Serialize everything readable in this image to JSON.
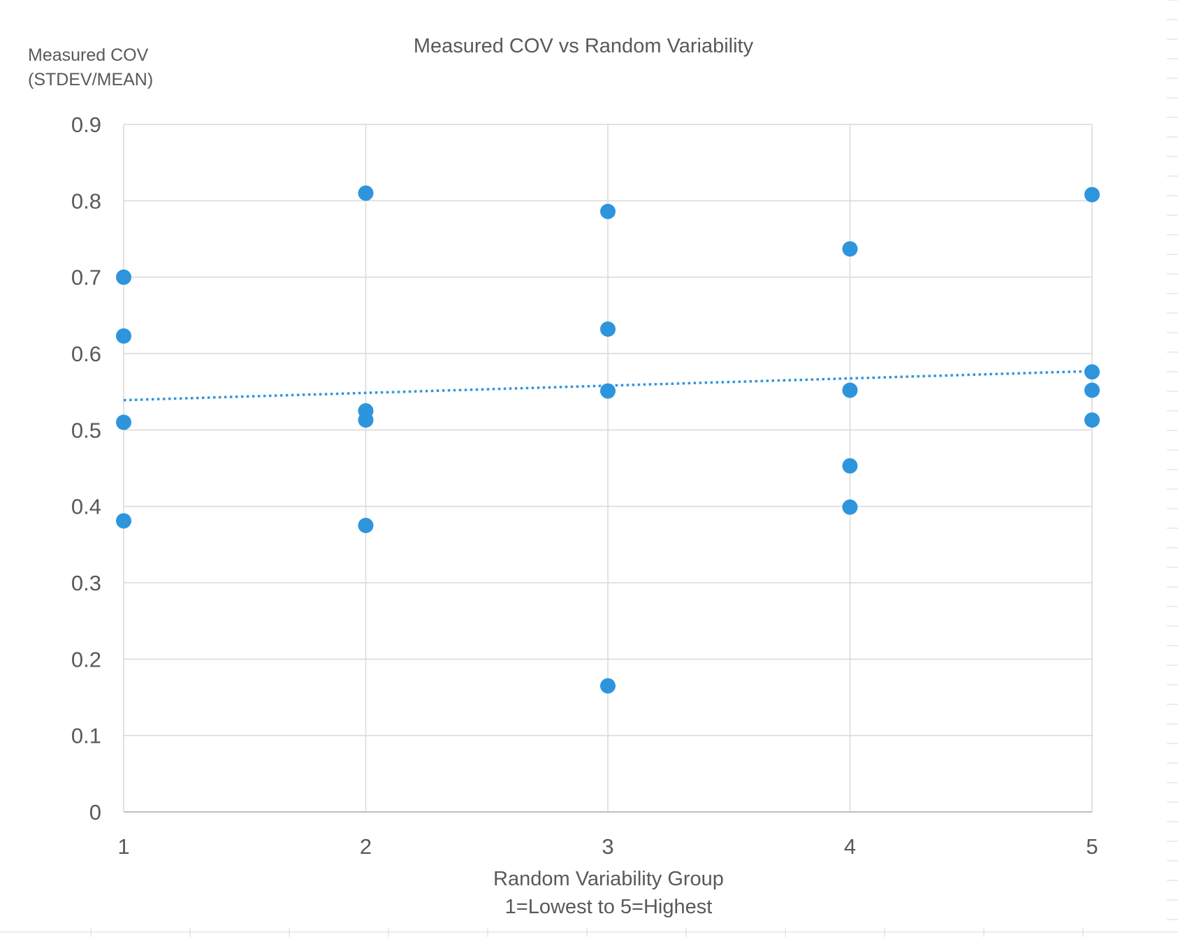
{
  "chart_data": {
    "type": "scatter",
    "title": "Measured COV vs Random Variability",
    "ylabel_lines": [
      "Measured COV",
      "(STDEV/MEAN)"
    ],
    "xlabel_lines": [
      "Random Variability Group",
      "1=Lowest to 5=Highest"
    ],
    "xlim": [
      1,
      5
    ],
    "ylim": [
      0,
      0.9
    ],
    "x_ticks": [
      "1",
      "2",
      "3",
      "4",
      "5"
    ],
    "y_ticks": [
      "0",
      "0.1",
      "0.2",
      "0.3",
      "0.4",
      "0.5",
      "0.6",
      "0.7",
      "0.8",
      "0.9"
    ],
    "grid": true,
    "legend": "none",
    "marker_color": "#2E95DD",
    "trendline": {
      "type": "linear",
      "style": "dotted",
      "color": "#2E95DD",
      "y_at_x1": 0.539,
      "y_at_x5": 0.577
    },
    "points": [
      {
        "x": 1,
        "y": 0.7
      },
      {
        "x": 1,
        "y": 0.623
      },
      {
        "x": 1,
        "y": 0.51
      },
      {
        "x": 1,
        "y": 0.381
      },
      {
        "x": 2,
        "y": 0.81
      },
      {
        "x": 2,
        "y": 0.525
      },
      {
        "x": 2,
        "y": 0.513
      },
      {
        "x": 2,
        "y": 0.375
      },
      {
        "x": 3,
        "y": 0.786
      },
      {
        "x": 3,
        "y": 0.632
      },
      {
        "x": 3,
        "y": 0.551
      },
      {
        "x": 3,
        "y": 0.165
      },
      {
        "x": 4,
        "y": 0.737
      },
      {
        "x": 4,
        "y": 0.552
      },
      {
        "x": 4,
        "y": 0.453
      },
      {
        "x": 4,
        "y": 0.399
      },
      {
        "x": 5,
        "y": 0.808
      },
      {
        "x": 5,
        "y": 0.576
      },
      {
        "x": 5,
        "y": 0.552
      },
      {
        "x": 5,
        "y": 0.513
      }
    ]
  }
}
